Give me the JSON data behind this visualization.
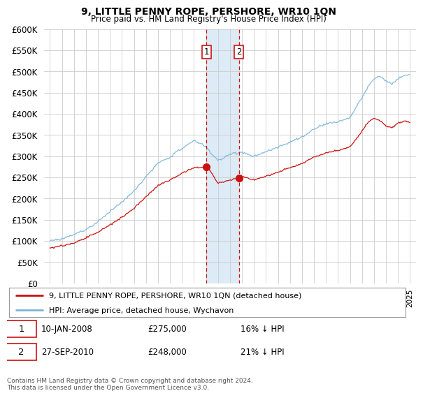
{
  "title": "9, LITTLE PENNY ROPE, PERSHORE, WR10 1QN",
  "subtitle": "Price paid vs. HM Land Registry's House Price Index (HPI)",
  "legend_line1": "9, LITTLE PENNY ROPE, PERSHORE, WR10 1QN (detached house)",
  "legend_line2": "HPI: Average price, detached house, Wychavon",
  "sale1_label": "1",
  "sale1_date": "10-JAN-2008",
  "sale1_price": "£275,000",
  "sale1_note": "16% ↓ HPI",
  "sale2_label": "2",
  "sale2_date": "27-SEP-2010",
  "sale2_price": "£248,000",
  "sale2_note": "21% ↓ HPI",
  "footer": "Contains HM Land Registry data © Crown copyright and database right 2024.\nThis data is licensed under the Open Government Licence v3.0.",
  "hpi_color": "#7ab4d8",
  "price_color": "#cc1111",
  "sale1_x": 2008.04,
  "sale2_x": 2010.75,
  "sale1_y": 275000,
  "sale2_y": 248000,
  "vline_color": "#cc1111",
  "shade_color": "#d6e8f5",
  "grid_color": "#cccccc",
  "bg_color": "#ffffff",
  "ylim": [
    0,
    600000
  ],
  "xlim_left": 1994.5,
  "xlim_right": 2025.5
}
